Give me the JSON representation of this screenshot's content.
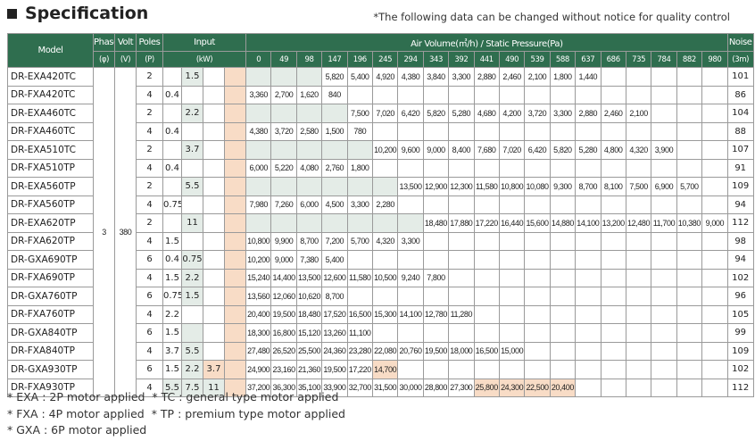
{
  "title": "Specification",
  "notice": "*The following data can be changed without notice for quality control",
  "headers": {
    "model": "Model",
    "phase": "Phase",
    "phase_unit": "(φ)",
    "volt": "Volt",
    "volt_unit": "(V)",
    "poles": "Poles",
    "poles_unit": "(P)",
    "input": "Input",
    "input_unit": "(kW)",
    "air": "Air Volume(㎥/h) / Static Pressure(Pa)",
    "noise": "Noise",
    "noise_unit": "(3m)"
  },
  "pressures": [
    "0",
    "49",
    "98",
    "147",
    "196",
    "245",
    "294",
    "343",
    "392",
    "441",
    "490",
    "539",
    "588",
    "637",
    "686",
    "735",
    "784",
    "882",
    "980"
  ],
  "phase": "3",
  "volt": "380",
  "colors": {
    "header": "#2f6e4f",
    "green_cell": "#e4ece7",
    "peach_cell": "#f8dcc6"
  },
  "rows": [
    {
      "model": "DR-EXA420TC",
      "poles": "2",
      "in": [
        "",
        "1.5",
        "",
        ""
      ],
      "vals": [
        "",
        "",
        "",
        "5,820",
        "5,400",
        "4,920",
        "4,380",
        "3,840",
        "3,300",
        "2,880",
        "2,460",
        "2,100",
        "1,800",
        "1,440",
        "",
        "",
        "",
        "",
        ""
      ],
      "noise": "101"
    },
    {
      "model": "DR-FXA420TC",
      "poles": "4",
      "in": [
        "0.4",
        "",
        "",
        ""
      ],
      "vals": [
        "3,360",
        "2,700",
        "1,620",
        "840",
        "",
        "",
        "",
        "",
        "",
        "",
        "",
        "",
        "",
        "",
        "",
        "",
        "",
        "",
        ""
      ],
      "noise": "86"
    },
    {
      "model": "DR-EXA460TC",
      "poles": "2",
      "in": [
        "",
        "2.2",
        "",
        ""
      ],
      "vals": [
        "",
        "",
        "",
        "",
        "7,500",
        "7,020",
        "6,420",
        "5,820",
        "5,280",
        "4,680",
        "4,200",
        "3,720",
        "3,300",
        "2,880",
        "2,460",
        "2,100",
        "",
        "",
        ""
      ],
      "noise": "104"
    },
    {
      "model": "DR-FXA460TC",
      "poles": "4",
      "in": [
        "0.4",
        "",
        "",
        ""
      ],
      "vals": [
        "4,380",
        "3,720",
        "2,580",
        "1,500",
        "780",
        "",
        "",
        "",
        "",
        "",
        "",
        "",
        "",
        "",
        "",
        "",
        "",
        "",
        ""
      ],
      "noise": "88"
    },
    {
      "model": "DR-EXA510TC",
      "poles": "2",
      "in": [
        "",
        "3.7",
        "",
        ""
      ],
      "vals": [
        "",
        "",
        "",
        "",
        "",
        "10,200",
        "9,600",
        "9,000",
        "8,400",
        "7,680",
        "7,020",
        "6,420",
        "5,820",
        "5,280",
        "4,800",
        "4,320",
        "3,900",
        "",
        ""
      ],
      "noise": "107"
    },
    {
      "model": "DR-FXA510TP",
      "poles": "4",
      "in": [
        "0.4",
        "",
        "",
        ""
      ],
      "vals": [
        "6,000",
        "5,220",
        "4,080",
        "2,760",
        "1,800",
        "",
        "",
        "",
        "",
        "",
        "",
        "",
        "",
        "",
        "",
        "",
        "",
        "",
        ""
      ],
      "noise": "91"
    },
    {
      "model": "DR-EXA560TP",
      "poles": "2",
      "in": [
        "",
        "5.5",
        "",
        ""
      ],
      "vals": [
        "",
        "",
        "",
        "",
        "",
        "",
        "13,500",
        "12,900",
        "12,300",
        "11,580",
        "10,800",
        "10,080",
        "9,300",
        "8,700",
        "8,100",
        "7,500",
        "6,900",
        "5,700",
        ""
      ],
      "noise": "109"
    },
    {
      "model": "DR-FXA560TP",
      "poles": "4",
      "in": [
        "0.75",
        "",
        "",
        ""
      ],
      "vals": [
        "7,980",
        "7,260",
        "6,000",
        "4,500",
        "3,300",
        "2,280",
        "",
        "",
        "",
        "",
        "",
        "",
        "",
        "",
        "",
        "",
        "",
        "",
        ""
      ],
      "noise": "94"
    },
    {
      "model": "DR-EXA620TP",
      "poles": "2",
      "in": [
        "",
        "11",
        "",
        ""
      ],
      "vals": [
        "",
        "",
        "",
        "",
        "",
        "",
        "",
        "18,480",
        "17,880",
        "17,220",
        "16,440",
        "15,600",
        "14,880",
        "14,100",
        "13,200",
        "12,480",
        "11,700",
        "10,380",
        "9,000"
      ],
      "noise": "112"
    },
    {
      "model": "DR-FXA620TP",
      "poles": "4",
      "in": [
        "1.5",
        "",
        "",
        ""
      ],
      "vals": [
        "10,800",
        "9,900",
        "8,700",
        "7,200",
        "5,700",
        "4,320",
        "3,300",
        "",
        "",
        "",
        "",
        "",
        "",
        "",
        "",
        "",
        "",
        "",
        ""
      ],
      "noise": "98"
    },
    {
      "model": "DR-GXA690TP",
      "poles": "6",
      "in": [
        "0.4",
        "0.75",
        "",
        ""
      ],
      "vals": [
        "10,200",
        "9,000",
        "7,380",
        "5,400",
        "",
        "",
        "",
        "",
        "",
        "",
        "",
        "",
        "",
        "",
        "",
        "",
        "",
        "",
        ""
      ],
      "noise": "94"
    },
    {
      "model": "DR-FXA690TP",
      "poles": "4",
      "in": [
        "1.5",
        "2.2",
        "",
        ""
      ],
      "vals": [
        "15,240",
        "14,400",
        "13,500",
        "12,600",
        "11,580",
        "10,500",
        "9,240",
        "7,800",
        "",
        "",
        "",
        "",
        "",
        "",
        "",
        "",
        "",
        "",
        ""
      ],
      "noise": "102"
    },
    {
      "model": "DR-GXA760TP",
      "poles": "6",
      "in": [
        "0.75",
        "1.5",
        "",
        ""
      ],
      "vals": [
        "13,560",
        "12,060",
        "10,620",
        "8,700",
        "",
        "",
        "",
        "",
        "",
        "",
        "",
        "",
        "",
        "",
        "",
        "",
        "",
        "",
        ""
      ],
      "noise": "96"
    },
    {
      "model": "DR-FXA760TP",
      "poles": "4",
      "in": [
        "2.2",
        "",
        "",
        ""
      ],
      "vals": [
        "20,400",
        "19,500",
        "18,480",
        "17,520",
        "16,500",
        "15,300",
        "14,100",
        "12,780",
        "11,280",
        "",
        "",
        "",
        "",
        "",
        "",
        "",
        "",
        "",
        ""
      ],
      "noise": "105"
    },
    {
      "model": "DR-GXA840TP",
      "poles": "6",
      "in": [
        "1.5",
        "",
        "",
        ""
      ],
      "vals": [
        "18,300",
        "16,800",
        "15,120",
        "13,260",
        "11,100",
        "",
        "",
        "",
        "",
        "",
        "",
        "",
        "",
        "",
        "",
        "",
        "",
        "",
        ""
      ],
      "noise": "99"
    },
    {
      "model": "DR-FXA840TP",
      "poles": "4",
      "in": [
        "3.7",
        "5.5",
        "",
        ""
      ],
      "vals": [
        "27,480",
        "26,520",
        "25,500",
        "24,360",
        "23,280",
        "22,080",
        "20,760",
        "19,500",
        "18,000",
        "16,500",
        "15,000",
        "",
        "",
        "",
        "",
        "",
        "",
        "",
        ""
      ],
      "noise": "109"
    },
    {
      "model": "DR-GXA930TP",
      "poles": "6",
      "in": [
        "1.5",
        "2.2",
        "3.7",
        ""
      ],
      "vals": [
        "24,900",
        "23,160",
        "21,360",
        "19,500",
        "17,220",
        "14,700",
        "",
        "",
        "",
        "",
        "",
        "",
        "",
        "",
        "",
        "",
        "",
        "",
        ""
      ],
      "noise": "102"
    },
    {
      "model": "DR-FXA930TP",
      "poles": "4",
      "in": [
        "5.5",
        "7.5",
        "11",
        ""
      ],
      "vals": [
        "37,200",
        "36,300",
        "35,100",
        "33,900",
        "32,700",
        "31,500",
        "30,000",
        "28,800",
        "27,300",
        "25,800",
        "24,300",
        "22,500",
        "20,400",
        "",
        "",
        "",
        "",
        "",
        ""
      ],
      "noise": "112"
    }
  ],
  "footnotes": [
    "* EXA : 2P motor applied",
    "* TC : general type motor applied",
    "* FXA : 4P motor applied",
    "* TP : premium type motor applied",
    "* GXA : 6P motor applied"
  ]
}
